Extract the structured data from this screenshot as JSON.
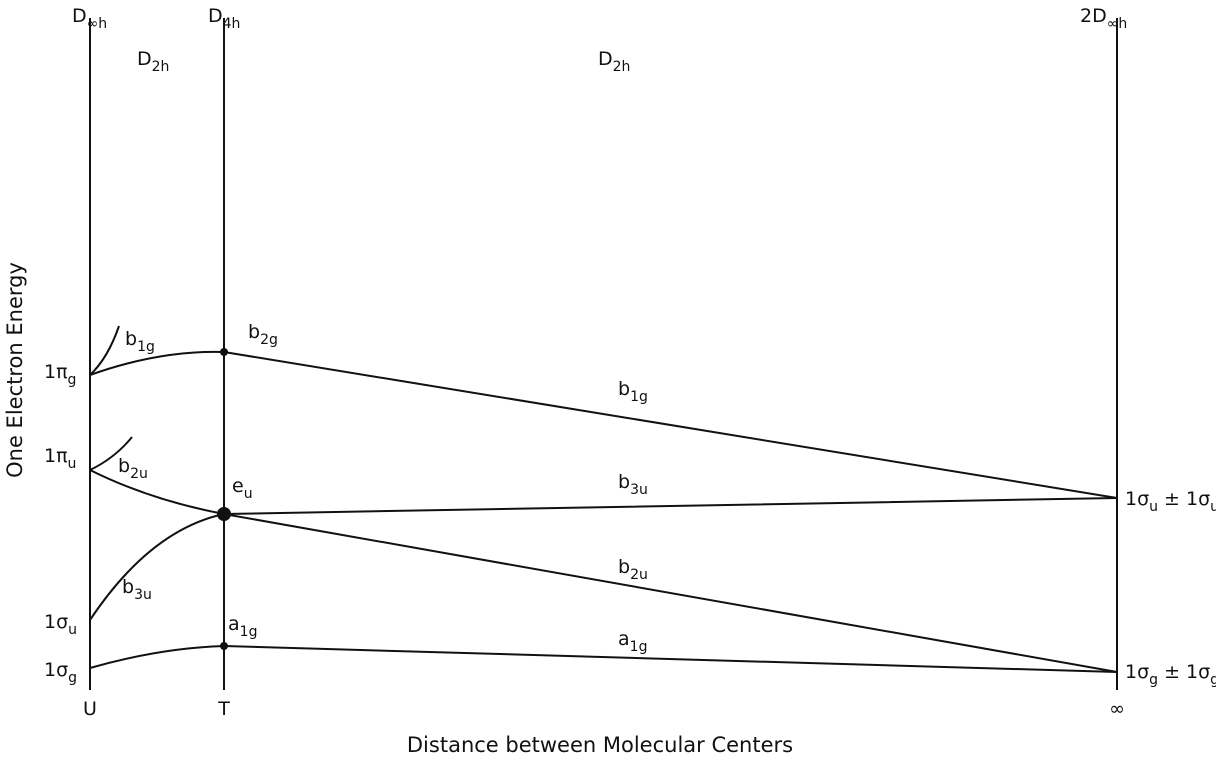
{
  "y_axis_title": "One Electron Energy",
  "x_axis_title": "Distance between Molecular Centers",
  "labels": [
    {
      "segments": [
        {
          "text": "D"
        },
        {
          "sub": "∞h"
        }
      ]
    },
    {
      "segments": [
        {
          "text": "D"
        },
        {
          "sub": "4h"
        }
      ]
    },
    {
      "segments": [
        {
          "text": "D"
        },
        {
          "sub": "2h"
        }
      ]
    },
    {
      "segments": [
        {
          "text": "D"
        },
        {
          "sub": "2h"
        }
      ]
    },
    {
      "segments": [
        {
          "text": "2D"
        },
        {
          "sub": "∞h"
        }
      ]
    },
    {
      "segments": [
        {
          "text": "b"
        },
        {
          "sub": "2g"
        }
      ]
    },
    {
      "segments": [
        {
          "text": "b"
        },
        {
          "sub": "1g"
        }
      ]
    },
    {
      "segments": [
        {
          "text": "1π"
        },
        {
          "sub": "g"
        }
      ]
    },
    {
      "segments": [
        {
          "text": "b"
        },
        {
          "sub": "1g"
        }
      ]
    },
    {
      "segments": [
        {
          "text": "1π"
        },
        {
          "sub": "u"
        }
      ]
    },
    {
      "segments": [
        {
          "text": "b"
        },
        {
          "sub": "2u"
        }
      ]
    },
    {
      "segments": [
        {
          "text": "e"
        },
        {
          "sub": "u"
        }
      ]
    },
    {
      "segments": [
        {
          "text": "b"
        },
        {
          "sub": "3u"
        }
      ]
    },
    {
      "segments": [
        {
          "text": "1σ"
        },
        {
          "sub": "u"
        },
        {
          "text": " ± 1σ"
        },
        {
          "sub": "u"
        }
      ]
    },
    {
      "segments": [
        {
          "text": "b"
        },
        {
          "sub": "2u"
        }
      ]
    },
    {
      "segments": [
        {
          "text": "b"
        },
        {
          "sub": "3u"
        }
      ]
    },
    {
      "segments": [
        {
          "text": "1σ"
        },
        {
          "sub": "u"
        }
      ]
    },
    {
      "segments": [
        {
          "text": "a"
        },
        {
          "sub": "1g"
        }
      ]
    },
    {
      "segments": [
        {
          "text": "a"
        },
        {
          "sub": "1g"
        }
      ]
    },
    {
      "segments": [
        {
          "text": "1σ"
        },
        {
          "sub": "g"
        }
      ]
    },
    {
      "segments": [
        {
          "text": "1σ"
        },
        {
          "sub": "g"
        },
        {
          "text": " ± 1σ"
        },
        {
          "sub": "g"
        }
      ]
    },
    {
      "segments": [
        {
          "text": "U"
        }
      ]
    },
    {
      "segments": [
        {
          "text": "T"
        }
      ]
    },
    {
      "segments": [
        {
          "text": "∞"
        }
      ]
    }
  ]
}
